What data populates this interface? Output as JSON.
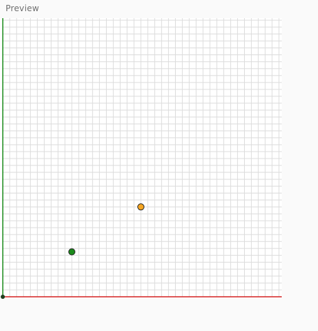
{
  "preview": {
    "title": "Preview"
  },
  "canvas": {
    "grid_cells_x": 40,
    "grid_cells_y": 40,
    "colors": {
      "grid": "#dcdcdc",
      "background": "#ffffff",
      "y_axis": "#1a8a1a",
      "x_axis": "#d42020",
      "origin": "#1f3f1f"
    },
    "points": [
      {
        "name": "point-orange",
        "x": 20,
        "y": 13,
        "color": "#f5a623"
      },
      {
        "name": "point-green",
        "x": 10,
        "y": 6.5,
        "color": "#1a8a1a"
      }
    ]
  }
}
